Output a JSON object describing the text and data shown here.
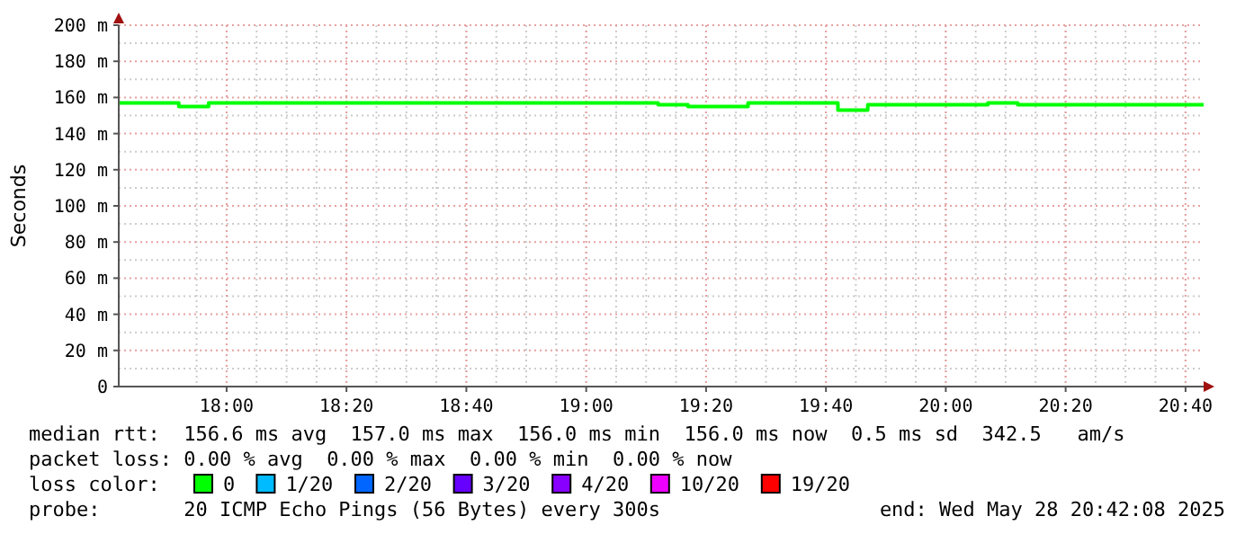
{
  "chart_data": {
    "type": "step",
    "ylabel": "Seconds",
    "x": [
      17.7,
      17.783,
      17.867,
      17.95,
      18.033,
      18.117,
      18.2,
      18.283,
      18.367,
      18.45,
      18.533,
      18.617,
      18.7,
      18.783,
      18.867,
      18.95,
      19.033,
      19.117,
      19.2,
      19.283,
      19.367,
      19.45,
      19.533,
      19.617,
      19.7,
      19.783,
      19.867,
      19.95,
      20.033,
      20.117,
      20.2,
      20.283,
      20.367,
      20.45,
      20.533,
      20.617,
      20.7
    ],
    "series": [
      {
        "name": "0",
        "color": "#00ff00",
        "values": [
          157,
          157,
          155,
          157,
          157,
          157,
          157,
          157,
          157,
          157,
          157,
          157,
          157,
          157,
          157,
          157,
          157,
          157,
          156,
          155,
          155,
          157,
          157,
          157,
          153,
          156,
          156,
          156,
          156,
          157,
          156,
          156,
          156,
          156,
          156,
          156,
          156
        ]
      },
      {
        "name": "1/20",
        "color": "#00bbff",
        "values": [
          null,
          null,
          null,
          null,
          null,
          null,
          null,
          null,
          null,
          null,
          null,
          null,
          null,
          null,
          null,
          null,
          null,
          null,
          null,
          null,
          null,
          null,
          null,
          null,
          null,
          null,
          null,
          null,
          null,
          null,
          null,
          null,
          null,
          null,
          null,
          null,
          null
        ]
      },
      {
        "name": "2/20",
        "color": "#0066ff",
        "values": [
          null,
          null,
          null,
          null,
          null,
          null,
          null,
          null,
          null,
          null,
          null,
          null,
          null,
          null,
          null,
          null,
          null,
          null,
          null,
          null,
          null,
          null,
          null,
          null,
          null,
          null,
          null,
          null,
          null,
          null,
          null,
          null,
          null,
          null,
          null,
          null,
          null
        ]
      },
      {
        "name": "3/20",
        "color": "#6600ff",
        "values": [
          null,
          null,
          null,
          null,
          null,
          null,
          null,
          null,
          null,
          null,
          null,
          null,
          null,
          null,
          null,
          null,
          null,
          null,
          null,
          null,
          null,
          null,
          null,
          null,
          null,
          null,
          null,
          null,
          null,
          null,
          null,
          null,
          null,
          null,
          null,
          null,
          null
        ]
      },
      {
        "name": "4/20",
        "color": "#8800ff",
        "values": [
          null,
          null,
          null,
          null,
          null,
          null,
          null,
          null,
          null,
          null,
          null,
          null,
          null,
          null,
          null,
          null,
          null,
          null,
          null,
          null,
          null,
          null,
          null,
          null,
          null,
          null,
          null,
          null,
          null,
          null,
          null,
          null,
          null,
          null,
          null,
          null,
          null
        ]
      },
      {
        "name": "10/20",
        "color": "#ee00ff",
        "values": [
          null,
          null,
          null,
          null,
          null,
          null,
          null,
          null,
          null,
          null,
          null,
          null,
          null,
          null,
          null,
          null,
          null,
          null,
          null,
          null,
          null,
          null,
          null,
          null,
          null,
          null,
          null,
          null,
          null,
          null,
          null,
          null,
          null,
          null,
          null,
          null,
          null
        ]
      },
      {
        "name": "19/20",
        "color": "#ff0000",
        "values": [
          null,
          null,
          null,
          null,
          null,
          null,
          null,
          null,
          null,
          null,
          null,
          null,
          null,
          null,
          null,
          null,
          null,
          null,
          null,
          null,
          null,
          null,
          null,
          null,
          null,
          null,
          null,
          null,
          null,
          null,
          null,
          null,
          null,
          null,
          null,
          null,
          null
        ]
      }
    ],
    "legend_title": "loss color:",
    "legend": "bottom",
    "xlim": [
      17.7,
      20.717
    ],
    "xticks": [
      {
        "value": 18,
        "label": "18:00"
      },
      {
        "value": 18.3333,
        "label": "18:20"
      },
      {
        "value": 18.6667,
        "label": "18:40"
      },
      {
        "value": 19,
        "label": "19:00"
      },
      {
        "value": 19.3333,
        "label": "19:20"
      },
      {
        "value": 19.6667,
        "label": "19:40"
      },
      {
        "value": 20,
        "label": "20:00"
      },
      {
        "value": 20.3333,
        "label": "20:20"
      },
      {
        "value": 20.6667,
        "label": "20:40"
      }
    ],
    "ylim": [
      0,
      200
    ],
    "yticks": [
      0,
      {
        "value": 20,
        "label": "20 m"
      },
      {
        "value": 40,
        "label": "40 m"
      },
      {
        "value": 60,
        "label": "60 m"
      },
      {
        "value": 80,
        "label": "80 m"
      },
      {
        "value": 100,
        "label": "100 m"
      },
      {
        "value": 120,
        "label": "120 m"
      },
      {
        "value": 140,
        "label": "140 m"
      },
      {
        "value": 160,
        "label": "160 m"
      },
      {
        "value": 180,
        "label": "180 m"
      },
      {
        "value": 200,
        "label": "200 m"
      }
    ],
    "grid": true,
    "annotations": [
      "median rtt:  156.6 ms avg  157.0 ms max  156.0 ms min  156.0 ms now  0.5 ms sd  342.5   am/s",
      "packet loss: 0.00 % avg  0.00 % max  0.00 % min  0.00 % now",
      "probe:       20 ICMP Echo Pings (56 Bytes) every 300s",
      "end: Wed May 28 20:42:08 2025"
    ]
  }
}
